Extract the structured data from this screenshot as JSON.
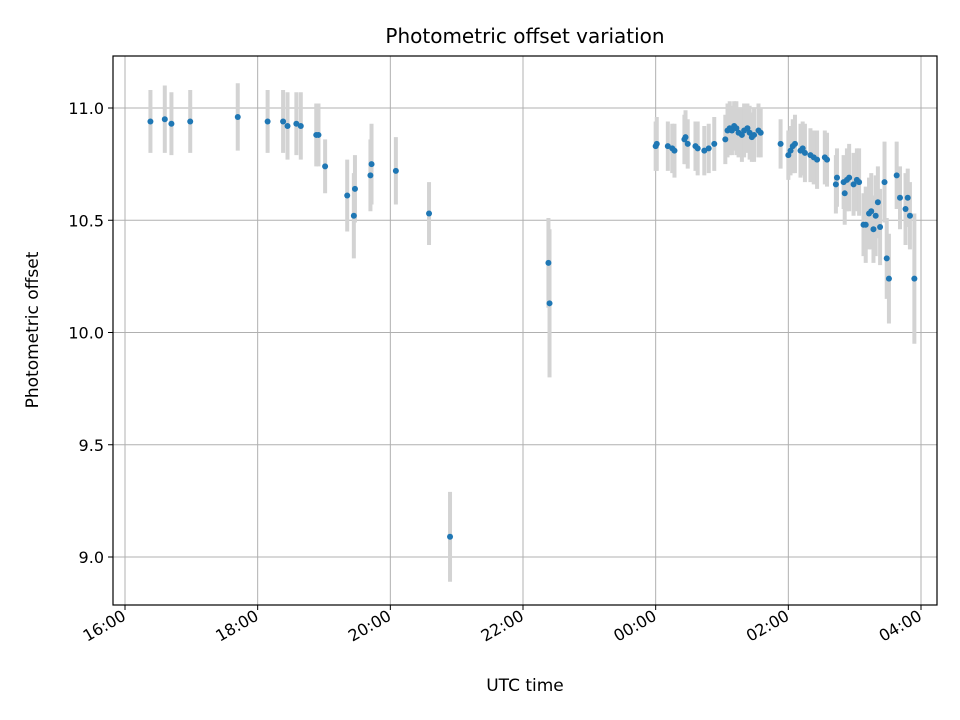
{
  "chart_data": {
    "type": "scatter",
    "title": "Photometric offset variation",
    "xlabel": "UTC time",
    "ylabel": "Photometric offset",
    "xlim": [
      "16:00",
      "04:00"
    ],
    "ylim": [
      8.8,
      11.22
    ],
    "x_ticks": [
      "16:00",
      "18:00",
      "20:00",
      "22:00",
      "00:00",
      "02:00",
      "04:00"
    ],
    "y_ticks": [
      "9.0",
      "9.5",
      "10.0",
      "10.5",
      "11.0"
    ],
    "grid": true,
    "colors": {
      "point": "#1f77b4",
      "errorbar": "#d3d3d3",
      "grid": "#b0b0b0"
    },
    "series": [
      {
        "x": [
          "16:23",
          "16:36",
          "16:42",
          "16:59",
          "17:42",
          "18:09",
          "18:23",
          "18:27",
          "18:35",
          "18:39",
          "18:53",
          "18:55",
          "19:01",
          "19:21",
          "19:27",
          "19:28",
          "19:42",
          "19:43",
          "20:05",
          "20:35",
          "20:54",
          "22:23",
          "22:24",
          "00:00",
          "00:01",
          "00:11",
          "00:15",
          "00:17",
          "00:26",
          "00:27",
          "00:29",
          "00:36",
          "00:38",
          "00:44",
          "00:48",
          "00:53",
          "01:03",
          "01:05",
          "01:07",
          "01:09",
          "01:11",
          "01:13",
          "01:15",
          "01:18",
          "01:20",
          "01:23",
          "01:25",
          "01:27",
          "01:29",
          "01:33",
          "01:35",
          "01:53",
          "02:00",
          "02:02",
          "02:04",
          "02:06",
          "02:11",
          "02:13",
          "02:15",
          "02:20",
          "02:23",
          "02:26",
          "02:33",
          "02:35",
          "02:43",
          "02:44",
          "02:50",
          "02:51",
          "02:53",
          "02:55",
          "02:59",
          "03:02",
          "03:04",
          "03:08",
          "03:10",
          "03:13",
          "03:15",
          "03:17",
          "03:19",
          "03:21",
          "03:23",
          "03:27",
          "03:29",
          "03:31",
          "03:38",
          "03:41",
          "03:46",
          "03:48",
          "03:50",
          "03:54"
        ],
        "y": [
          10.94,
          10.95,
          10.93,
          10.94,
          10.96,
          10.94,
          10.94,
          10.92,
          10.93,
          10.92,
          10.88,
          10.88,
          10.74,
          10.61,
          10.52,
          10.64,
          10.7,
          10.75,
          10.72,
          10.53,
          9.09,
          10.31,
          10.13,
          10.83,
          10.84,
          10.83,
          10.82,
          10.81,
          10.86,
          10.87,
          10.84,
          10.83,
          10.82,
          10.81,
          10.82,
          10.84,
          10.86,
          10.9,
          10.91,
          10.9,
          10.92,
          10.91,
          10.89,
          10.88,
          10.9,
          10.91,
          10.89,
          10.87,
          10.88,
          10.9,
          10.89,
          10.84,
          10.79,
          10.81,
          10.83,
          10.84,
          10.81,
          10.82,
          10.8,
          10.79,
          10.78,
          10.77,
          10.78,
          10.77,
          10.66,
          10.69,
          10.67,
          10.62,
          10.68,
          10.69,
          10.66,
          10.68,
          10.67,
          10.48,
          10.48,
          10.53,
          10.54,
          10.46,
          10.52,
          10.58,
          10.47,
          10.67,
          10.33,
          10.24,
          10.7,
          10.6,
          10.55,
          10.6,
          10.52,
          10.24
        ],
        "err": [
          0.14,
          0.15,
          0.14,
          0.14,
          0.15,
          0.14,
          0.14,
          0.15,
          0.14,
          0.15,
          0.14,
          0.14,
          0.12,
          0.16,
          0.19,
          0.15,
          0.16,
          0.18,
          0.15,
          0.14,
          0.2,
          0.2,
          0.33,
          0.11,
          0.12,
          0.11,
          0.11,
          0.12,
          0.11,
          0.12,
          0.11,
          0.11,
          0.12,
          0.11,
          0.11,
          0.12,
          0.11,
          0.12,
          0.12,
          0.11,
          0.11,
          0.12,
          0.11,
          0.12,
          0.12,
          0.11,
          0.12,
          0.11,
          0.12,
          0.12,
          0.11,
          0.11,
          0.11,
          0.11,
          0.12,
          0.13,
          0.12,
          0.12,
          0.13,
          0.12,
          0.12,
          0.13,
          0.12,
          0.12,
          0.13,
          0.13,
          0.12,
          0.14,
          0.14,
          0.15,
          0.14,
          0.14,
          0.15,
          0.14,
          0.17,
          0.16,
          0.17,
          0.15,
          0.18,
          0.16,
          0.17,
          0.18,
          0.18,
          0.2,
          0.15,
          0.14,
          0.16,
          0.13,
          0.15,
          0.29
        ]
      }
    ]
  }
}
